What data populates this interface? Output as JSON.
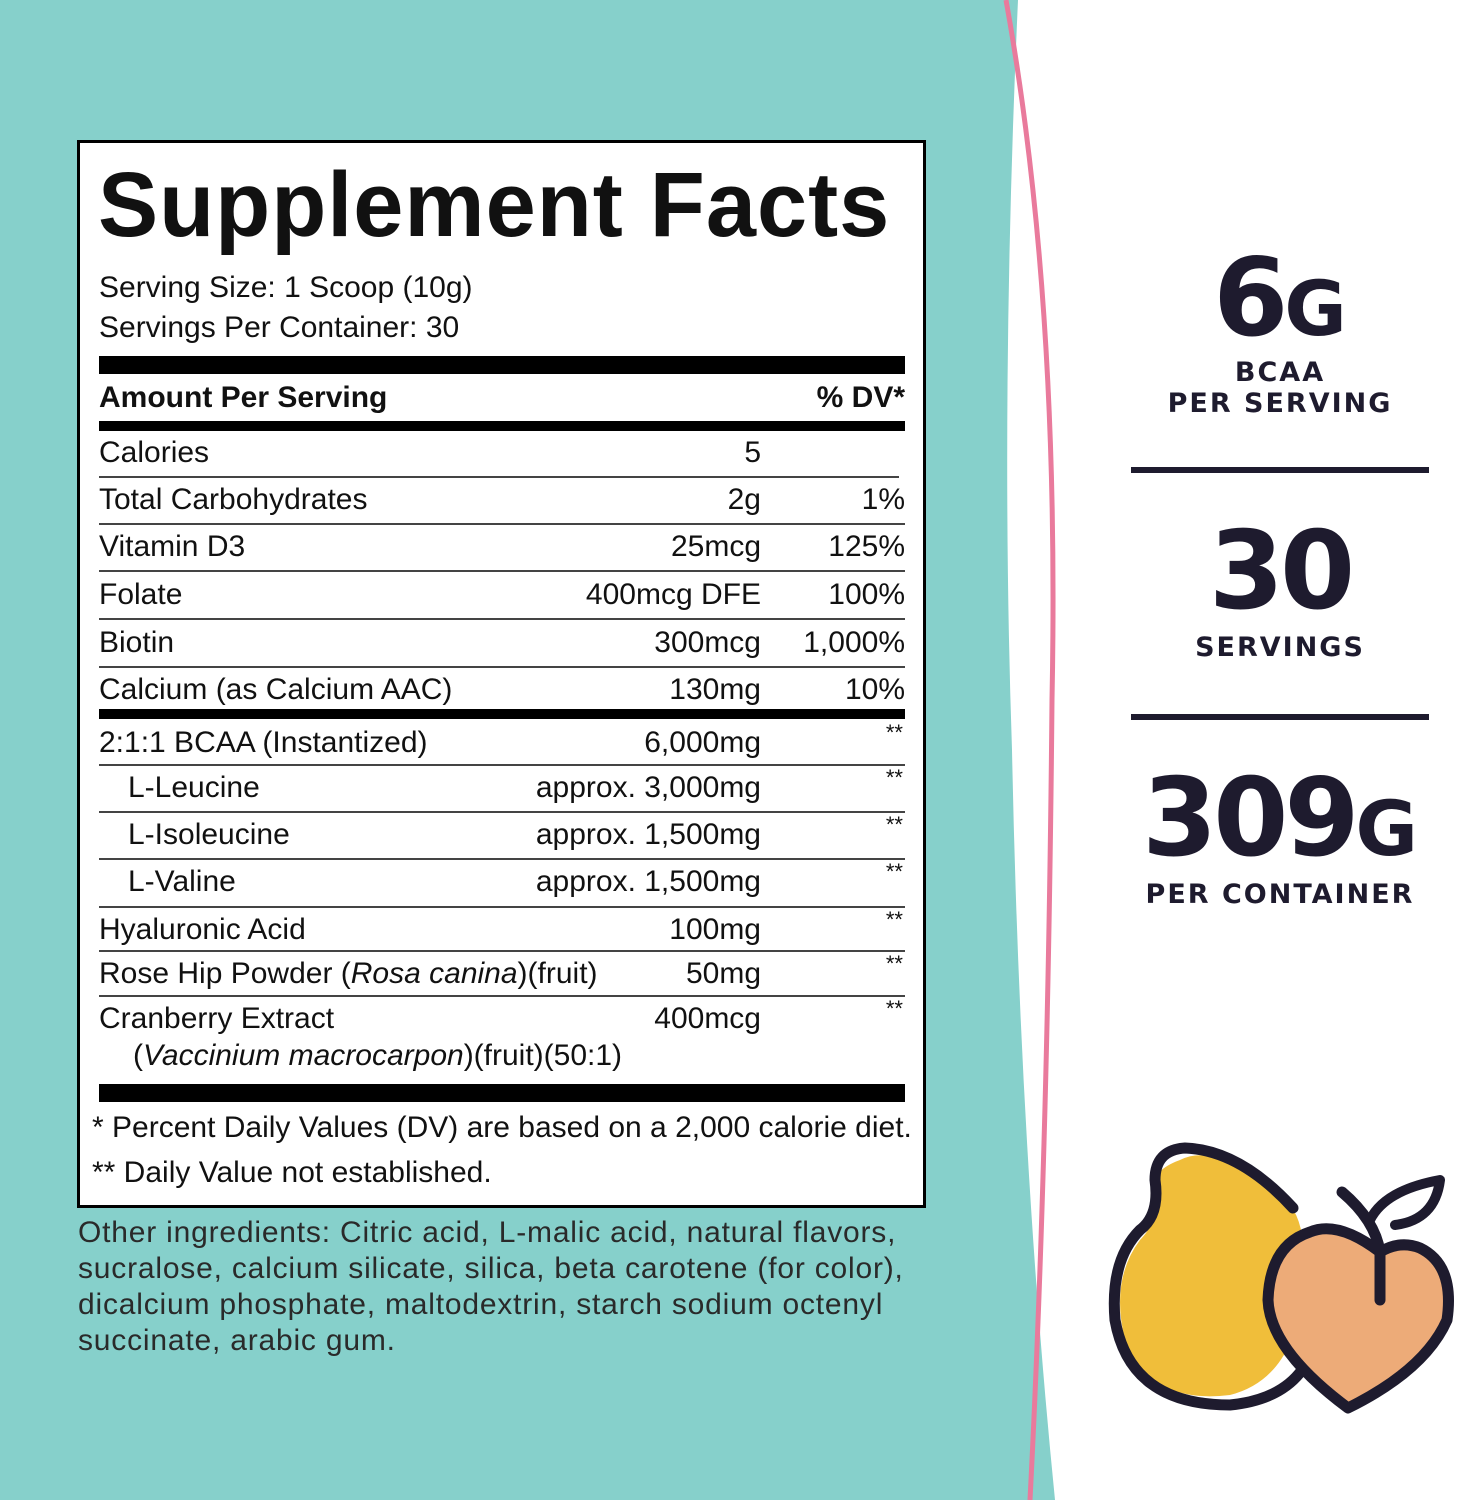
{
  "colors": {
    "teal": "#86d0cb",
    "pink": "#e97a9c",
    "navy": "#1e1b2e",
    "pear": "#f0be3a",
    "peach": "#edab78"
  },
  "facts": {
    "title": "Supplement Facts",
    "serving_size": "Serving Size: 1 Scoop (10g)",
    "servings_per_container": "Servings Per Container: 30",
    "header_amount": "Amount Per Serving",
    "header_dv": "% DV*",
    "rows": [
      {
        "name": "Calories",
        "amount": "5",
        "dv": ""
      },
      {
        "name": "Total Carbohydrates",
        "amount": "2g",
        "dv": "1%"
      },
      {
        "name": "Vitamin D3",
        "amount": "25mcg",
        "dv": "125%"
      },
      {
        "name": "Folate",
        "amount": "400mcg DFE",
        "dv": "100%"
      },
      {
        "name": "Biotin",
        "amount": "300mcg",
        "dv": "1,000%"
      },
      {
        "name": "Calcium (as Calcium AAC)",
        "amount": "130mg",
        "dv": "10%"
      }
    ],
    "rows2": [
      {
        "name": "2:1:1 BCAA (Instantized)",
        "amount": "6,000mg",
        "dv": "**"
      },
      {
        "name": "L-Leucine",
        "amount": "approx. 3,000mg",
        "dv": "**"
      },
      {
        "name": "L-Isoleucine",
        "amount": "approx. 1,500mg",
        "dv": "**"
      },
      {
        "name": "L-Valine",
        "amount": "approx. 1,500mg",
        "dv": "**"
      },
      {
        "name": "Hyaluronic Acid",
        "amount": "100mg",
        "dv": "**"
      },
      {
        "name_pre": "Rose Hip Powder (",
        "name_italic": "Rosa canina",
        "name_post": ")(fruit)",
        "amount": "50mg",
        "dv": "**"
      },
      {
        "name": "Cranberry Extract",
        "name2_pre": "(",
        "name2_italic": "Vaccinium macrocarpon",
        "name2_post": ")(fruit)(50:1)",
        "amount": "400mcg",
        "dv": "**"
      }
    ],
    "footnote1": "* Percent Daily Values (DV) are based on a 2,000 calorie diet.",
    "footnote2": "** Daily Value not established."
  },
  "other_ingredients": [
    "Other ingredients: Citric acid, L-malic acid, natural flavors,",
    "sucralose, calcium silicate, silica, beta carotene (for color),",
    "dicalcium phosphate, maltodextrin, starch sodium octenyl",
    "succinate, arabic gum."
  ],
  "stats": [
    {
      "value": "6",
      "unit": "G",
      "caption1": "BCAA",
      "caption2": "PER SERVING"
    },
    {
      "value": "30",
      "unit": "",
      "caption1": "SERVINGS",
      "caption2": ""
    },
    {
      "value": "309",
      "unit": "G",
      "caption1": "PER CONTAINER",
      "caption2": ""
    }
  ],
  "icons": [
    "pear-icon",
    "peach-icon"
  ]
}
